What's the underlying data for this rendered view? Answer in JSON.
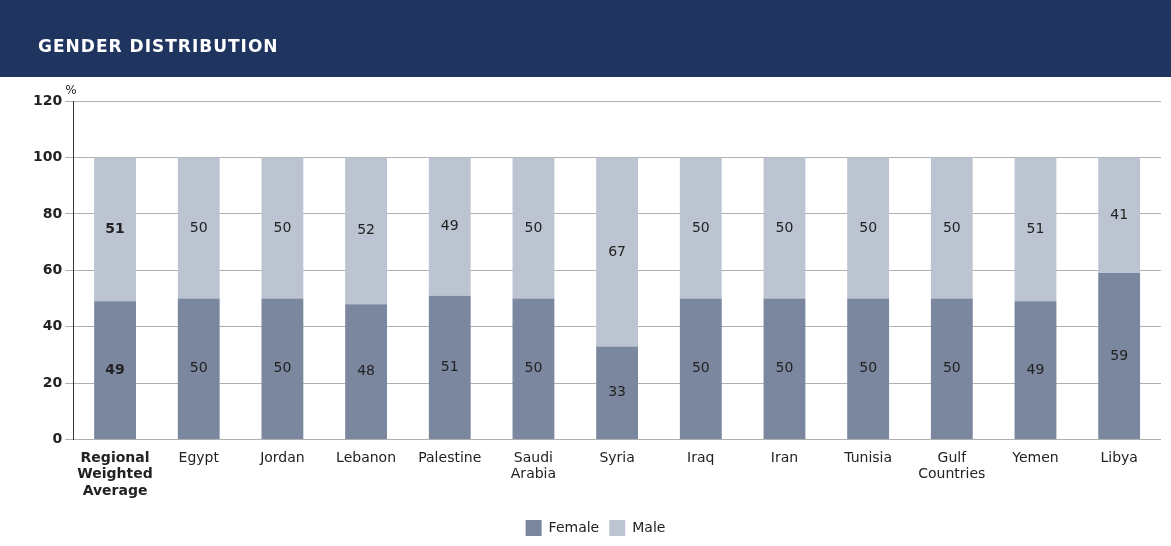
{
  "chart_data": {
    "type": "bar",
    "title": "GENDER DISTRIBUTION",
    "ylabel": "%",
    "categories": [
      "Regional Weighted Average",
      "Egypt",
      "Jordan",
      "Lebanon",
      "Palestine",
      "Saudi Arabia",
      "Syria",
      "Iraq",
      "Iran",
      "Tunisia",
      "Gulf Countries",
      "Yemen",
      "Libya"
    ],
    "series": [
      {
        "name": "Female",
        "color": "#7a879e",
        "values": [
          49,
          50,
          50,
          48,
          51,
          50,
          33,
          50,
          50,
          50,
          50,
          49,
          59
        ]
      },
      {
        "name": "Male",
        "color": "#bcc3d1",
        "values": [
          51,
          50,
          50,
          52,
          49,
          50,
          67,
          50,
          50,
          50,
          50,
          51,
          41
        ]
      }
    ],
    "stacked": true,
    "ylim": [
      0,
      120
    ],
    "yticks": [
      0,
      20,
      40,
      60,
      80,
      100,
      120
    ],
    "grid": "y",
    "legend": "bottom",
    "data_labels": true
  }
}
